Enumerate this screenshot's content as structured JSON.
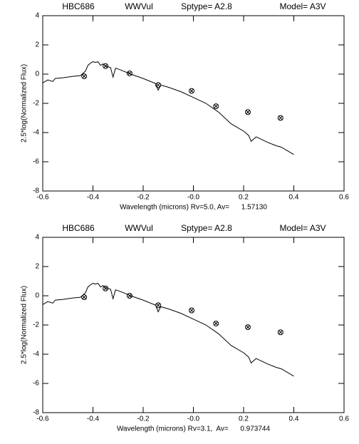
{
  "chart_data": [
    {
      "type": "line",
      "titles": [
        "HBC686",
        "WWVul",
        "Sptype= A2.8",
        "Model= A3V"
      ],
      "xlabel": "Wavelength (microns) Rv=5.0, Av=      1.57130",
      "ylabel": "2.5*log(Normalized Flux)",
      "xlim": [
        -0.6,
        0.6
      ],
      "ylim": [
        -8,
        4
      ],
      "xticks": [
        -0.6,
        -0.4,
        -0.2,
        {
          "value": 0,
          "label": "-0.0"
        },
        0.2,
        0.4,
        0.6
      ],
      "yticks": [
        -8,
        -6,
        -4,
        -2,
        0,
        2,
        4
      ],
      "series": [
        {
          "mode": "line",
          "color": "#000000",
          "x": [
            -0.6,
            -0.58,
            -0.56,
            -0.55,
            -0.52,
            -0.5,
            -0.48,
            -0.45,
            -0.43,
            -0.42,
            -0.41,
            -0.4,
            -0.39,
            -0.38,
            -0.37,
            -0.36,
            -0.35,
            -0.33,
            -0.32,
            -0.31,
            -0.3,
            -0.27,
            -0.25,
            -0.2,
            -0.15,
            -0.14,
            -0.13,
            -0.1,
            -0.05,
            0.0,
            0.05,
            0.1,
            0.15,
            0.2,
            0.22,
            0.23,
            0.25,
            0.3,
            0.33,
            0.35,
            0.4
          ],
          "values": [
            -0.6,
            -0.4,
            -0.5,
            -0.3,
            -0.25,
            -0.2,
            -0.15,
            -0.1,
            0.2,
            0.6,
            0.75,
            0.85,
            0.8,
            0.85,
            0.6,
            0.7,
            0.55,
            0.45,
            -0.2,
            0.4,
            0.35,
            0.15,
            0.0,
            -0.3,
            -0.65,
            -1.1,
            -0.75,
            -0.9,
            -1.2,
            -1.6,
            -2.0,
            -2.6,
            -3.4,
            -3.9,
            -4.2,
            -4.6,
            -4.3,
            -4.7,
            -4.9,
            -5.0,
            -5.5
          ]
        },
        {
          "mode": "marker",
          "color": "#000000",
          "x": [
            -0.435,
            -0.35,
            -0.254,
            -0.14,
            -0.007,
            0.09,
            0.217,
            0.347
          ],
          "values": [
            -0.15,
            0.55,
            0.05,
            -0.75,
            -1.15,
            -2.2,
            -2.6,
            -3.0
          ]
        }
      ]
    },
    {
      "type": "line",
      "titles": [
        "HBC686",
        "WWVul",
        "Sptype= A2.8",
        "Model= A3V"
      ],
      "xlabel": "Wavelength (microns) Rv=3.1,  Av=      0.973744",
      "ylabel": "2.5*log(Normalized Flux)",
      "xlim": [
        -0.6,
        0.6
      ],
      "ylim": [
        -8,
        4
      ],
      "xticks": [
        -0.6,
        -0.4,
        -0.2,
        {
          "value": 0,
          "label": "-0.0"
        },
        0.2,
        0.4,
        0.6
      ],
      "yticks": [
        -8,
        -6,
        -4,
        -2,
        0,
        2,
        4
      ],
      "series": [
        {
          "mode": "line",
          "color": "#000000",
          "x": [
            -0.6,
            -0.58,
            -0.56,
            -0.55,
            -0.52,
            -0.5,
            -0.48,
            -0.45,
            -0.43,
            -0.42,
            -0.41,
            -0.4,
            -0.39,
            -0.38,
            -0.37,
            -0.36,
            -0.35,
            -0.33,
            -0.32,
            -0.31,
            -0.3,
            -0.27,
            -0.25,
            -0.2,
            -0.15,
            -0.14,
            -0.13,
            -0.1,
            -0.05,
            0.0,
            0.05,
            0.1,
            0.15,
            0.2,
            0.22,
            0.23,
            0.25,
            0.3,
            0.33,
            0.35,
            0.4
          ],
          "values": [
            -0.6,
            -0.4,
            -0.5,
            -0.3,
            -0.25,
            -0.2,
            -0.15,
            -0.1,
            0.2,
            0.6,
            0.75,
            0.85,
            0.8,
            0.85,
            0.6,
            0.7,
            0.55,
            0.45,
            -0.2,
            0.4,
            0.35,
            0.15,
            0.0,
            -0.3,
            -0.65,
            -1.1,
            -0.75,
            -0.9,
            -1.2,
            -1.6,
            -2.0,
            -2.6,
            -3.4,
            -3.9,
            -4.2,
            -4.6,
            -4.3,
            -4.7,
            -4.9,
            -5.0,
            -5.5
          ]
        },
        {
          "mode": "marker",
          "color": "#000000",
          "x": [
            -0.435,
            -0.35,
            -0.254,
            -0.14,
            -0.007,
            0.09,
            0.217,
            0.347
          ],
          "values": [
            -0.1,
            0.5,
            0.0,
            -0.65,
            -1.0,
            -1.9,
            -2.15,
            -2.5
          ]
        }
      ]
    }
  ]
}
